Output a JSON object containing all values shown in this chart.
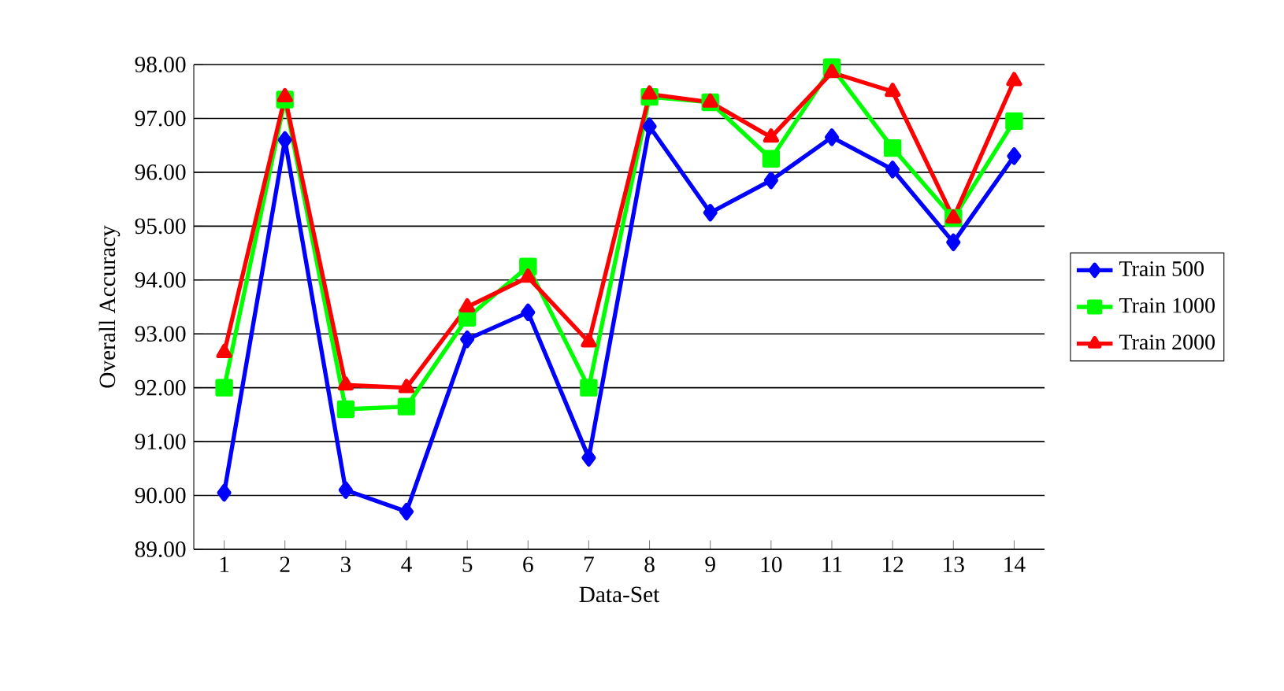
{
  "chart_data": {
    "type": "line",
    "xlabel": "Data-Set",
    "ylabel": "Overall Accuracy",
    "categories": [
      "1",
      "2",
      "3",
      "4",
      "5",
      "6",
      "7",
      "8",
      "9",
      "10",
      "11",
      "12",
      "13",
      "14"
    ],
    "series": [
      {
        "name": "Train 500",
        "color": "#0000ff",
        "marker": "diamond",
        "values": [
          90.05,
          96.6,
          90.1,
          89.7,
          92.9,
          93.4,
          90.7,
          96.85,
          95.25,
          95.85,
          96.65,
          96.05,
          94.7,
          96.3
        ]
      },
      {
        "name": "Train 1000",
        "color": "#00ff00",
        "marker": "square",
        "values": [
          92.0,
          97.35,
          91.6,
          91.65,
          93.3,
          94.25,
          92.0,
          97.4,
          97.3,
          96.25,
          97.95,
          96.45,
          95.15,
          96.95
        ]
      },
      {
        "name": "Train 2000",
        "color": "#ff0000",
        "marker": "triangle",
        "values": [
          92.65,
          97.4,
          92.05,
          92.0,
          93.5,
          94.05,
          92.85,
          97.45,
          97.3,
          96.65,
          97.85,
          97.5,
          95.15,
          97.7
        ]
      }
    ],
    "ylim": [
      89,
      98
    ],
    "yticks": [
      {
        "value": 89,
        "label": "89.00"
      },
      {
        "value": 90,
        "label": "90.00"
      },
      {
        "value": 91,
        "label": "91.00"
      },
      {
        "value": 92,
        "label": "92.00"
      },
      {
        "value": 93,
        "label": "93.00"
      },
      {
        "value": 94,
        "label": "94.00"
      },
      {
        "value": 95,
        "label": "95.00"
      },
      {
        "value": 96,
        "label": "96.00"
      },
      {
        "value": 97,
        "label": "97.00"
      },
      {
        "value": 98,
        "label": "98.00"
      }
    ],
    "grid": "y",
    "legend": "right",
    "line_style": "solid"
  }
}
